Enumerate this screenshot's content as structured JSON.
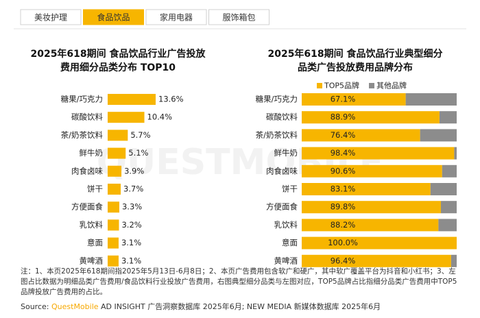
{
  "tabs": [
    "美妆护理",
    "食品饮品",
    "家用电器",
    "服饰箱包"
  ],
  "active_tab": 1,
  "watermark": "QUESTMOBILE",
  "chart_data": [
    {
      "type": "bar",
      "orientation": "horizontal",
      "title": [
        "2025年618期间 食品饮品行业广告投放",
        "费用细分品类分布 TOP10"
      ],
      "categories": [
        "糖果/巧克力",
        "碳酸饮料",
        "茶/奶茶饮料",
        "鲜牛奶",
        "肉食卤味",
        "饼干",
        "方便面食",
        "乳饮料",
        "意面",
        "黄啤酒"
      ],
      "values": [
        13.6,
        10.4,
        5.7,
        5.1,
        3.9,
        3.7,
        3.3,
        3.2,
        3.1,
        3.1
      ],
      "value_labels": [
        "13.6%",
        "10.4%",
        "5.7%",
        "5.1%",
        "3.9%",
        "3.7%",
        "3.3%",
        "3.2%",
        "3.1%",
        "3.1%"
      ],
      "color": "#f7b500"
    },
    {
      "type": "stacked-bar",
      "orientation": "horizontal",
      "title": [
        "2025年618期间 食品饮品行业典型细分",
        "品类广告投放费用品牌分布"
      ],
      "categories": [
        "糖果/巧克力",
        "碳酸饮料",
        "茶/奶茶饮料",
        "鲜牛奶",
        "肉食卤味",
        "饼干",
        "方便面食",
        "乳饮料",
        "意面",
        "黄啤酒"
      ],
      "series": [
        {
          "name": "TOP5品牌",
          "color": "#f7b500",
          "values": [
            67.1,
            88.9,
            76.4,
            98.4,
            90.6,
            83.1,
            89.8,
            88.2,
            100.0,
            96.4
          ],
          "value_labels": [
            "67.1%",
            "88.9%",
            "76.4%",
            "98.4%",
            "90.6%",
            "83.1%",
            "89.8%",
            "88.2%",
            "100.0%",
            "96.4%"
          ]
        },
        {
          "name": "其他品牌",
          "color": "#8c8c8c",
          "values": [
            32.9,
            11.1,
            23.6,
            1.6,
            9.4,
            16.9,
            10.2,
            11.8,
            0.0,
            3.6
          ]
        }
      ],
      "legend": "top"
    }
  ],
  "note": "注：1、本页2025年618期间指2025年5月13日-6月8日；2、本页广告费用包含软广和硬广，其中软广覆盖平台为抖音和小红书；3、左图占比数据为明细品类广告费用/食品饮料行业投放广告费用，右图典型细分品类与左图对应，TOP5品牌占比指细分品类广告费用中TOP5品牌投放广告费用的占比。",
  "source": {
    "label": "Source:",
    "brand": "QuestMobile",
    "text": "AD INSIGHT 广告洞察数据库 2025年6月; NEW MEDIA 新媒体数据库 2025年6月"
  }
}
